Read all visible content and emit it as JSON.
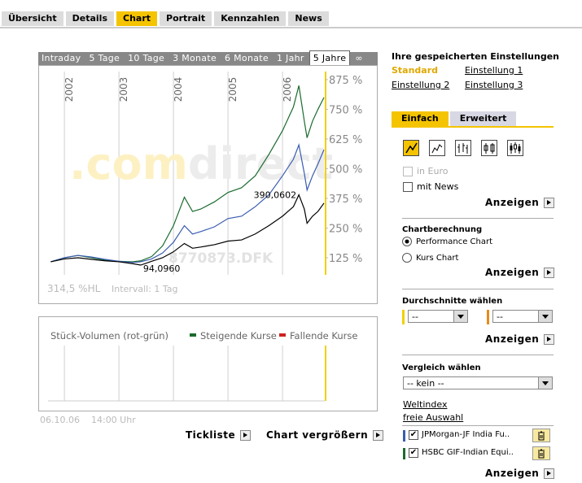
{
  "nav": {
    "tabs": [
      "Übersicht",
      "Details",
      "Chart",
      "Portrait",
      "Kennzahlen",
      "News"
    ],
    "active": 2
  },
  "periods": {
    "tabs": [
      "Intraday",
      "5 Tage",
      "10 Tage",
      "3 Monate",
      "6 Monate",
      "1 Jahr",
      "5 Jahre",
      "∞"
    ],
    "active": 6
  },
  "chart_data": {
    "type": "line",
    "x": [
      2001.75,
      2002.0,
      2002.25,
      2002.5,
      2002.75,
      2003.0,
      2003.25,
      2003.4,
      2003.6,
      2003.8,
      2004.0,
      2004.2,
      2004.35,
      2004.5,
      2004.75,
      2005.0,
      2005.25,
      2005.5,
      2005.75,
      2006.0,
      2006.2,
      2006.3,
      2006.4,
      2006.45,
      2006.55,
      2006.65,
      2006.76
    ],
    "xlim": [
      2001.64,
      2006.79
    ],
    "xticks": [
      2002,
      2003,
      2004,
      2005,
      2006
    ],
    "ylim": [
      53,
      909
    ],
    "yticks": [
      {
        "value": 875,
        "label": "875 %"
      },
      {
        "value": 750,
        "label": "750 %"
      },
      {
        "value": 625,
        "label": "625 %"
      },
      {
        "value": 500,
        "label": "500 %"
      },
      {
        "value": 375,
        "label": "375 %"
      },
      {
        "value": 250,
        "label": "250 %"
      },
      {
        "value": 125,
        "label": "125 %"
      }
    ],
    "grid": "x",
    "series": [
      {
        "name": "HSBC GIF-Indian Equi..",
        "color": "#1a6b2e",
        "values": [
          108,
          125,
          135,
          125,
          115,
          110,
          108,
          112,
          130,
          175,
          260,
          380,
          320,
          330,
          360,
          400,
          420,
          470,
          560,
          660,
          760,
          850,
          700,
          630,
          700,
          750,
          800
        ]
      },
      {
        "name": "JPMorgan-JF India Fu..",
        "color": "#3a5cb0",
        "values": [
          108,
          125,
          135,
          128,
          118,
          110,
          105,
          108,
          120,
          145,
          190,
          260,
          225,
          235,
          255,
          290,
          300,
          340,
          390,
          470,
          540,
          600,
          480,
          410,
          470,
          520,
          580
        ]
      },
      {
        "color": "#000000",
        "values": [
          108,
          120,
          125,
          118,
          112,
          108,
          100,
          94,
          110,
          125,
          150,
          185,
          165,
          170,
          180,
          195,
          200,
          225,
          260,
          300,
          340,
          390,
          330,
          270,
          300,
          320,
          355
        ]
      }
    ],
    "annotations": [
      "390,0602",
      "94,0960"
    ],
    "watermark": [
      ".com",
      "direct",
      "8770873.DFK"
    ],
    "range_label": "314,5 %HL",
    "interval_label": "Intervall: 1 Tag",
    "marker_color": "#f2d000"
  },
  "volume": {
    "title": "Stück-Volumen (rot-grün)",
    "legend": [
      {
        "name": "Steigende Kurse",
        "color": "#1a6b2e"
      },
      {
        "name": "Fallende Kurse",
        "color": "#cc2222"
      }
    ]
  },
  "timestamp": {
    "date": "06.10.06",
    "time": "14:00 Uhr"
  },
  "actions": [
    "Tickliste",
    "Chart vergrößern"
  ],
  "saved": {
    "title": "Ihre gespeicherten Einstellungen",
    "items": [
      "Standard",
      "Einstellung 1",
      "Einstellung 2",
      "Einstellung 3"
    ],
    "active": 0
  },
  "mode_tabs": {
    "tabs": [
      "Einfach",
      "Erweitert"
    ],
    "active": 0
  },
  "display": {
    "options": [
      "in Euro",
      "mit News"
    ],
    "button": "Anzeigen"
  },
  "calculation": {
    "title": "Chartberechnung",
    "options": [
      "Performance Chart",
      "Kurs Chart"
    ],
    "button": "Anzeigen"
  },
  "averages": {
    "title": "Durchschnitte wählen",
    "selects": [
      "--",
      "--"
    ],
    "button": "Anzeigen"
  },
  "comparison": {
    "title": "Vergleich wählen",
    "select": "-- kein --",
    "links": [
      "Weltindex",
      "freie Auswahl"
    ],
    "button": "Anzeigen"
  }
}
